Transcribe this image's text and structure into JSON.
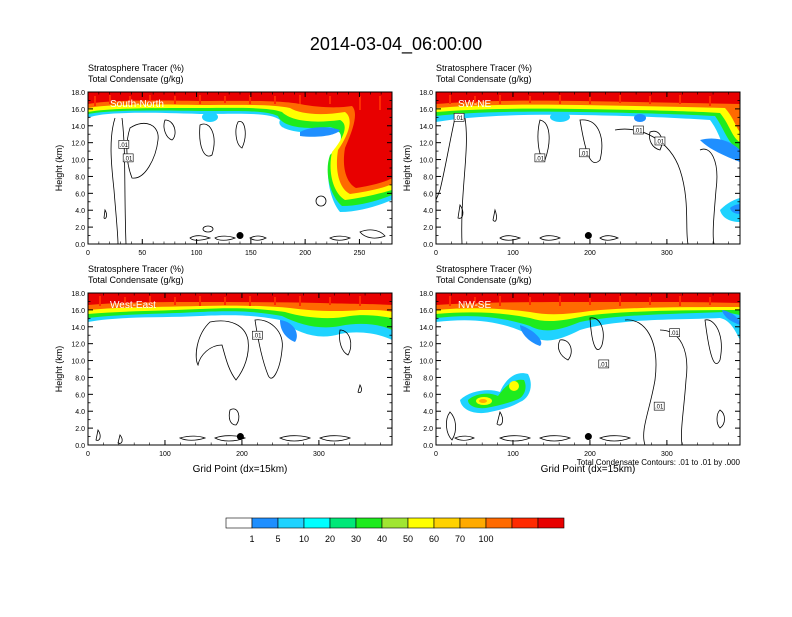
{
  "chart_data": {
    "type": "contour",
    "title": "2014-03-04_06:00:00",
    "footnote": "Total Condensate Contours: .01 to .01 by .000",
    "colorbar": {
      "colors": [
        "#ffffff",
        "#1f8fff",
        "#1fd3ff",
        "#00ffff",
        "#00e878",
        "#1eeb1e",
        "#a0e632",
        "#ffff00",
        "#ffd200",
        "#ffaa00",
        "#ff6a00",
        "#ff2a00",
        "#e80000"
      ],
      "labels": [
        "1",
        "5",
        "10",
        "20",
        "30",
        "40",
        "50",
        "60",
        "70",
        "100"
      ]
    },
    "panels": [
      {
        "name": "South-North",
        "title1": "Stratosphere Tracer   (%)",
        "title2": "Total Condensate   (g/kg)",
        "ylabel": "Height (km)",
        "xlabel": "",
        "xlim": [
          0,
          280
        ],
        "ylim": [
          0,
          18
        ],
        "xticks": [
          0,
          50,
          100,
          150,
          200,
          250
        ],
        "yticks": [
          "0.0",
          "2.0",
          "4.0",
          "6.0",
          "8.0",
          "10.0",
          "12.0",
          "14.0",
          "16.0",
          "18.0"
        ],
        "marker": {
          "x": 140,
          "y": 1.0
        },
        "contour_labels": [
          {
            "x": 33,
            "y": 11.8,
            "text": ".01"
          },
          {
            "x": 37,
            "y": 10.2,
            "text": ".01"
          }
        ]
      },
      {
        "name": "SW-NE",
        "title1": "Stratosphere Tracer   (%)",
        "title2": "Total Condensate   (g/kg)",
        "ylabel": "Height (km)",
        "xlabel": "",
        "xlim": [
          0,
          395
        ],
        "ylim": [
          0,
          18
        ],
        "xticks": [
          0,
          100,
          200,
          300
        ],
        "yticks": [
          "0.0",
          "2.0",
          "4.0",
          "6.0",
          "8.0",
          "10.0",
          "12.0",
          "14.0",
          "16.0",
          "18.0"
        ],
        "marker": {
          "x": 198,
          "y": 1.0
        },
        "contour_labels": [
          {
            "x": 30,
            "y": 15.0,
            "text": ".01"
          },
          {
            "x": 135,
            "y": 10.2,
            "text": ".01"
          },
          {
            "x": 193,
            "y": 10.8,
            "text": ".01"
          },
          {
            "x": 263,
            "y": 13.5,
            "text": ".01"
          },
          {
            "x": 291,
            "y": 12.2,
            "text": ".01"
          }
        ]
      },
      {
        "name": "West-East",
        "title1": "Stratosphere Tracer   (%)",
        "title2": "Total Condensate   (g/kg)",
        "ylabel": "Height (km)",
        "xlabel": "Grid Point (dx=15km)",
        "xlim": [
          0,
          395
        ],
        "ylim": [
          0,
          18
        ],
        "xticks": [
          0,
          100,
          200,
          300
        ],
        "yticks": [
          "0.0",
          "2.0",
          "4.0",
          "6.0",
          "8.0",
          "10.0",
          "12.0",
          "14.0",
          "16.0",
          "18.0"
        ],
        "marker": {
          "x": 198,
          "y": 1.0
        },
        "contour_labels": [
          {
            "x": 220,
            "y": 13.0,
            "text": ".01"
          }
        ]
      },
      {
        "name": "NW-SE",
        "title1": "Stratosphere Tracer   (%)",
        "title2": "Total Condensate   (g/kg)",
        "ylabel": "Height (km)",
        "xlabel": "Grid Point (dx=15km)",
        "xlim": [
          0,
          395
        ],
        "ylim": [
          0,
          18
        ],
        "xticks": [
          0,
          100,
          200,
          300
        ],
        "yticks": [
          "0.0",
          "2.0",
          "4.0",
          "6.0",
          "8.0",
          "10.0",
          "12.0",
          "14.0",
          "16.0",
          "18.0"
        ],
        "marker": {
          "x": 198,
          "y": 1.0
        },
        "contour_labels": [
          {
            "x": 310,
            "y": 13.3,
            "text": ".01"
          },
          {
            "x": 218,
            "y": 9.6,
            "text": ".01"
          },
          {
            "x": 290,
            "y": 4.6,
            "text": ".01"
          }
        ]
      }
    ]
  }
}
